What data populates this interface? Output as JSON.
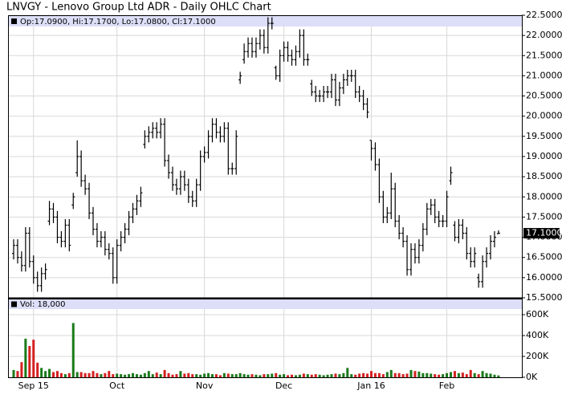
{
  "chart_data": [
    {
      "type": "ohlc",
      "title": "LNVGY - Lenovo Group Ltd ADR - Daily OHLC Chart",
      "legend_text": "Op:17.0900, Hi:17.1700, Lo:17.0800, Cl:17.1000",
      "close_label": "17.1000",
      "color": "#000000",
      "grid": true,
      "categories": [
        null,
        null,
        null,
        null,
        null,
        "Sep 15",
        null,
        null,
        null,
        null,
        null,
        null,
        null,
        null,
        null,
        null,
        null,
        null,
        null,
        null,
        null,
        null,
        null,
        null,
        null,
        null,
        "Oct",
        null,
        null,
        null,
        null,
        null,
        null,
        null,
        null,
        null,
        null,
        null,
        null,
        null,
        null,
        null,
        null,
        null,
        null,
        null,
        null,
        null,
        "Nov",
        null,
        null,
        null,
        null,
        null,
        null,
        null,
        null,
        null,
        null,
        null,
        null,
        null,
        null,
        null,
        null,
        null,
        null,
        null,
        "Dec",
        null,
        null,
        null,
        null,
        null,
        null,
        null,
        null,
        null,
        null,
        null,
        null,
        null,
        null,
        null,
        null,
        null,
        null,
        null,
        null,
        null,
        "Jan 16",
        null,
        null,
        null,
        null,
        null,
        null,
        null,
        null,
        null,
        null,
        null,
        null,
        null,
        null,
        null,
        null,
        null,
        null,
        "Feb",
        null,
        null,
        null,
        null,
        null,
        null,
        null,
        null,
        null,
        null,
        null,
        null,
        null
      ],
      "open": [
        16.6,
        16.8,
        16.5,
        16.3,
        17.1,
        16.4,
        16.0,
        15.8,
        16.1,
        17.4,
        17.7,
        17.5,
        17.0,
        16.9,
        17.3,
        17.8,
        18.6,
        19.0,
        18.4,
        18.2,
        17.6,
        17.2,
        16.9,
        17.0,
        16.7,
        16.6,
        16.0,
        16.8,
        17.0,
        17.2,
        17.5,
        17.7,
        17.9,
        19.3,
        19.5,
        19.6,
        19.7,
        19.6,
        19.8,
        18.9,
        18.6,
        18.3,
        18.2,
        18.5,
        18.3,
        18.0,
        17.9,
        18.3,
        19.0,
        19.1,
        19.5,
        19.8,
        19.6,
        19.5,
        19.7,
        18.7,
        18.7,
        20.9,
        21.4,
        21.6,
        21.8,
        21.6,
        21.8,
        22.0,
        21.7,
        22.3,
        21.2,
        21.0,
        21.5,
        21.7,
        21.5,
        21.4,
        21.6,
        22.0,
        21.4,
        20.8,
        20.6,
        20.5,
        20.5,
        20.6,
        20.6,
        20.9,
        20.4,
        20.7,
        20.9,
        21.0,
        21.0,
        20.6,
        20.5,
        20.3,
        19.4,
        19.2,
        18.8,
        18.0,
        17.5,
        17.6,
        18.2,
        17.4,
        17.1,
        16.9,
        16.2,
        16.7,
        16.5,
        16.8,
        17.2,
        17.7,
        17.8,
        17.5,
        17.4,
        17.4,
        18.4,
        17.3,
        17.0,
        17.3,
        17.1,
        16.6,
        16.4,
        16.0,
        15.9,
        16.4,
        16.6,
        16.9,
        17.09
      ],
      "high": [
        16.95,
        16.95,
        16.65,
        17.25,
        17.25,
        16.55,
        16.15,
        16.25,
        16.35,
        17.9,
        17.85,
        17.65,
        17.15,
        17.45,
        17.45,
        18.1,
        19.4,
        19.15,
        18.55,
        18.35,
        17.75,
        17.35,
        17.15,
        17.15,
        16.85,
        16.75,
        16.95,
        17.15,
        17.35,
        17.65,
        17.85,
        18.05,
        18.25,
        19.65,
        19.75,
        19.85,
        19.85,
        19.95,
        19.95,
        19.05,
        18.75,
        18.45,
        18.65,
        18.65,
        18.45,
        18.15,
        18.45,
        19.15,
        19.25,
        19.65,
        19.95,
        19.95,
        19.75,
        19.85,
        19.85,
        18.85,
        19.65,
        21.1,
        21.8,
        21.95,
        21.95,
        21.95,
        22.15,
        22.15,
        22.45,
        22.45,
        21.25,
        21.65,
        21.85,
        21.85,
        21.65,
        21.75,
        22.15,
        22.15,
        21.55,
        20.9,
        20.75,
        20.65,
        20.75,
        20.75,
        21.05,
        21.05,
        20.85,
        21.05,
        21.15,
        21.15,
        21.15,
        20.75,
        20.65,
        20.45,
        19.4,
        19.35,
        18.95,
        18.15,
        17.75,
        18.6,
        18.35,
        17.55,
        17.25,
        17.05,
        16.85,
        16.85,
        16.95,
        17.35,
        17.85,
        17.95,
        17.95,
        17.65,
        17.55,
        18.15,
        18.75,
        17.4,
        17.45,
        17.45,
        17.25,
        16.75,
        16.75,
        16.1,
        16.55,
        16.75,
        17.05,
        17.15,
        17.17
      ],
      "low": [
        16.45,
        16.35,
        16.15,
        16.15,
        16.25,
        15.85,
        15.65,
        15.65,
        15.95,
        17.3,
        17.35,
        16.85,
        16.75,
        16.75,
        16.65,
        17.7,
        18.5,
        18.25,
        18.05,
        17.45,
        17.05,
        16.75,
        16.75,
        16.55,
        16.45,
        15.85,
        15.85,
        16.65,
        16.85,
        17.05,
        17.35,
        17.55,
        17.75,
        19.2,
        19.35,
        19.45,
        19.45,
        19.45,
        18.75,
        18.45,
        18.15,
        18.05,
        18.05,
        18.15,
        17.85,
        17.75,
        17.75,
        18.15,
        18.85,
        18.95,
        19.35,
        19.45,
        19.35,
        19.35,
        18.55,
        18.55,
        18.55,
        20.8,
        21.3,
        21.45,
        21.45,
        21.45,
        21.65,
        21.55,
        21.55,
        22.15,
        20.9,
        20.85,
        21.35,
        21.35,
        21.25,
        21.25,
        21.45,
        21.25,
        21.25,
        20.5,
        20.35,
        20.35,
        20.35,
        20.45,
        20.45,
        20.25,
        20.25,
        20.55,
        20.75,
        20.85,
        20.45,
        20.35,
        20.15,
        19.95,
        18.9,
        18.65,
        17.85,
        17.35,
        17.35,
        17.45,
        17.25,
        16.95,
        16.75,
        16.05,
        16.05,
        16.35,
        16.35,
        16.65,
        17.05,
        17.55,
        17.35,
        17.25,
        17.25,
        17.25,
        18.3,
        16.9,
        16.85,
        16.95,
        16.45,
        16.25,
        16.25,
        15.75,
        15.75,
        16.25,
        16.45,
        16.75,
        17.08
      ],
      "close": [
        16.8,
        16.5,
        16.3,
        17.1,
        16.4,
        16.0,
        15.8,
        16.1,
        16.2,
        17.7,
        17.5,
        17.0,
        16.9,
        17.3,
        16.8,
        18.0,
        19.0,
        18.4,
        18.2,
        17.6,
        17.2,
        16.9,
        17.0,
        16.7,
        16.6,
        16.0,
        16.8,
        17.0,
        17.2,
        17.5,
        17.7,
        17.9,
        18.1,
        19.5,
        19.6,
        19.7,
        19.6,
        19.8,
        18.9,
        18.6,
        18.3,
        18.2,
        18.5,
        18.3,
        18.0,
        17.9,
        18.3,
        19.0,
        19.1,
        19.5,
        19.8,
        19.6,
        19.5,
        19.7,
        18.7,
        18.7,
        19.5,
        21.0,
        21.6,
        21.8,
        21.6,
        21.8,
        22.0,
        21.7,
        22.3,
        22.3,
        21.0,
        21.5,
        21.7,
        21.5,
        21.4,
        21.6,
        22.0,
        21.4,
        21.4,
        20.6,
        20.5,
        20.5,
        20.6,
        20.6,
        20.9,
        20.4,
        20.7,
        20.9,
        21.0,
        21.0,
        20.6,
        20.5,
        20.3,
        20.1,
        19.2,
        18.8,
        18.0,
        17.5,
        17.6,
        18.2,
        17.4,
        17.1,
        16.9,
        16.2,
        16.7,
        16.5,
        16.8,
        17.2,
        17.7,
        17.8,
        17.5,
        17.4,
        17.4,
        18.0,
        18.6,
        17.0,
        17.3,
        17.1,
        16.6,
        16.4,
        16.6,
        15.9,
        16.4,
        16.6,
        16.9,
        17.0,
        17.1
      ],
      "ylim": [
        15.5,
        22.5
      ],
      "yticks": [
        {
          "value": 15.5,
          "label": "15.5000"
        },
        {
          "value": 16,
          "label": "16.0000"
        },
        {
          "value": 16.5,
          "label": "16.5000"
        },
        {
          "value": 17,
          "label": "17.0000"
        },
        {
          "value": 17.5,
          "label": "17.5000"
        },
        {
          "value": 18,
          "label": "18.0000"
        },
        {
          "value": 18.5,
          "label": "18.5000"
        },
        {
          "value": 19,
          "label": "19.0000"
        },
        {
          "value": 19.5,
          "label": "19.5000"
        },
        {
          "value": 20,
          "label": "20.0000"
        },
        {
          "value": 20.5,
          "label": "20.5000"
        },
        {
          "value": 21,
          "label": "21.0000"
        },
        {
          "value": 21.5,
          "label": "21.5000"
        },
        {
          "value": 22,
          "label": "22.0000"
        },
        {
          "value": 22.5,
          "label": "22.5000"
        }
      ]
    },
    {
      "type": "bar",
      "legend_text": "Vol: 18,000",
      "up_color": "#1a7a1a",
      "down_color": "#d42020",
      "values": [
        70000,
        60000,
        145000,
        370000,
        300000,
        360000,
        140000,
        90000,
        60000,
        80000,
        50000,
        60000,
        40000,
        30000,
        40000,
        520000,
        50000,
        50000,
        40000,
        40000,
        60000,
        40000,
        30000,
        40000,
        60000,
        30000,
        35000,
        30000,
        25000,
        30000,
        40000,
        30000,
        25000,
        40000,
        60000,
        30000,
        45000,
        30000,
        70000,
        40000,
        25000,
        30000,
        60000,
        35000,
        40000,
        30000,
        30000,
        25000,
        35000,
        40000,
        30000,
        30000,
        20000,
        40000,
        35000,
        30000,
        30000,
        40000,
        30000,
        25000,
        30000,
        25000,
        20000,
        30000,
        30000,
        35000,
        40000,
        25000,
        30000,
        20000,
        25000,
        20000,
        25000,
        35000,
        30000,
        25000,
        30000,
        25000,
        20000,
        25000,
        30000,
        35000,
        30000,
        40000,
        90000,
        30000,
        25000,
        35000,
        40000,
        35000,
        60000,
        40000,
        40000,
        30000,
        50000,
        70000,
        40000,
        40000,
        30000,
        35000,
        70000,
        60000,
        55000,
        40000,
        40000,
        35000,
        30000,
        25000,
        30000,
        40000,
        50000,
        60000,
        40000,
        45000,
        30000,
        70000,
        40000,
        30000,
        60000,
        40000,
        35000,
        25000,
        18000
      ],
      "ylim": [
        0,
        750000
      ],
      "yticks": [
        {
          "value": 0,
          "label": "0K"
        },
        {
          "value": 200000,
          "label": "200K"
        },
        {
          "value": 400000,
          "label": "400K"
        },
        {
          "value": 600000,
          "label": "600K"
        }
      ]
    }
  ]
}
